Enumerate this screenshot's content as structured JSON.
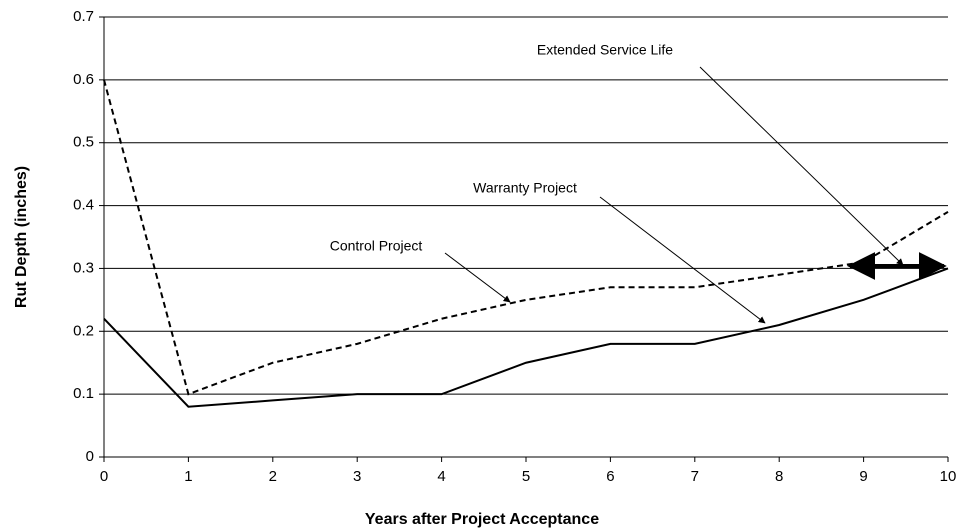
{
  "chart_data": {
    "type": "line",
    "x_label": "Years after Project Acceptance",
    "y_label": "Rut Depth (inches)",
    "x": [
      0,
      1,
      2,
      3,
      4,
      5,
      6,
      7,
      8,
      9,
      10
    ],
    "series": [
      {
        "name": "Warranty Project",
        "color": "#000000",
        "line_style": "solid",
        "values": [
          0.22,
          0.08,
          0.09,
          0.1,
          0.1,
          0.15,
          0.18,
          0.18,
          0.21,
          0.25,
          0.3
        ]
      },
      {
        "name": "Control Project",
        "color": "#000000",
        "line_style": "dashed",
        "values": [
          0.6,
          0.1,
          0.15,
          0.18,
          0.22,
          0.25,
          0.27,
          0.27,
          0.29,
          0.31,
          0.39
        ]
      }
    ],
    "annotations": [
      "Extended Service Life"
    ],
    "xlim": [
      0,
      10
    ],
    "xticks": [
      0,
      1,
      2,
      3,
      4,
      5,
      6,
      7,
      8,
      9,
      10
    ],
    "ylim": [
      0,
      0.7
    ],
    "yticks": [
      0,
      0.1,
      0.2,
      0.3,
      0.4,
      0.5,
      0.6,
      0.7
    ],
    "grid": true
  }
}
